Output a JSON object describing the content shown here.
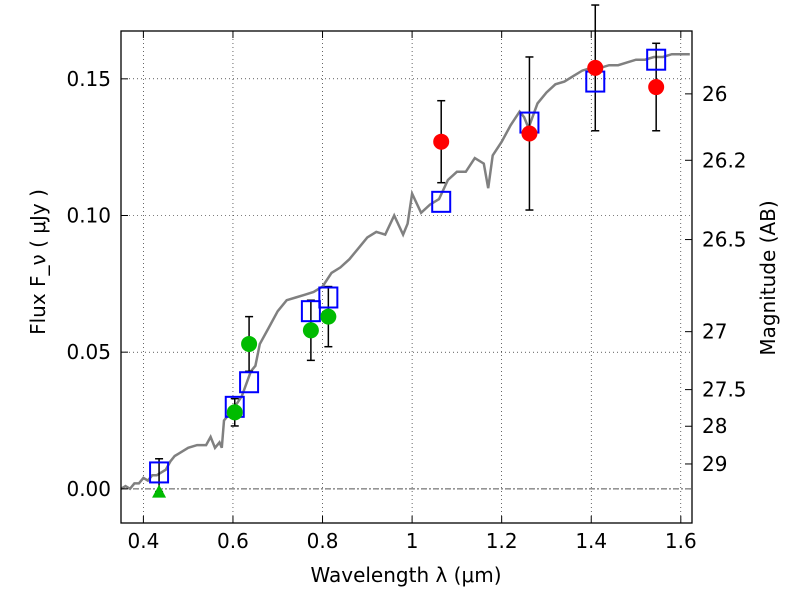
{
  "chart_data": {
    "type": "scatter",
    "xlabel": "Wavelength  λ (μm)",
    "ylabel": "Flux  F_ν  ( μJy )",
    "y2label": "Magnitude (AB)",
    "xlim": [
      0.35,
      1.625
    ],
    "ylim": [
      -0.0125,
      0.1675
    ],
    "grid": true,
    "x_ticks": [
      {
        "value": 0.4,
        "label": "0.4"
      },
      {
        "value": 0.6,
        "label": "0.6"
      },
      {
        "value": 0.8,
        "label": "0.8"
      },
      {
        "value": 1.0,
        "label": "1"
      },
      {
        "value": 1.2,
        "label": "1.2"
      },
      {
        "value": 1.4,
        "label": "1.4"
      },
      {
        "value": 1.6,
        "label": "1.6"
      }
    ],
    "y_ticks": [
      {
        "value": 0.0,
        "label": "0.00"
      },
      {
        "value": 0.05,
        "label": "0.05"
      },
      {
        "value": 0.1,
        "label": "0.10"
      },
      {
        "value": 0.15,
        "label": "0.15"
      }
    ],
    "mag_ticks": [
      {
        "label": "26",
        "flux": 0.1445
      },
      {
        "label": "26.2",
        "flux": 0.1202
      },
      {
        "label": "26.5",
        "flux": 0.0912
      },
      {
        "label": "27",
        "flux": 0.0575
      },
      {
        "label": "27.5",
        "flux": 0.0363
      },
      {
        "label": "28",
        "flux": 0.0229
      },
      {
        "label": "29",
        "flux": 0.0091
      }
    ],
    "colors": {
      "model": "#808080",
      "model_photometry": "#0000ff",
      "hst_points": "#00bb00",
      "ir_points": "#ff0000",
      "errorbar": "#000000",
      "zero_line": "#555555"
    },
    "model_spectrum": {
      "x": [
        0.35,
        0.36,
        0.37,
        0.38,
        0.39,
        0.4,
        0.41,
        0.42,
        0.43,
        0.44,
        0.45,
        0.46,
        0.47,
        0.48,
        0.5,
        0.52,
        0.54,
        0.55,
        0.56,
        0.57,
        0.575,
        0.58,
        0.59,
        0.6,
        0.62,
        0.64,
        0.65,
        0.66,
        0.68,
        0.7,
        0.72,
        0.74,
        0.76,
        0.78,
        0.8,
        0.82,
        0.84,
        0.86,
        0.88,
        0.9,
        0.92,
        0.94,
        0.96,
        0.98,
        0.99,
        1.0,
        1.02,
        1.04,
        1.06,
        1.08,
        1.1,
        1.12,
        1.14,
        1.16,
        1.17,
        1.18,
        1.2,
        1.22,
        1.24,
        1.25,
        1.26,
        1.28,
        1.3,
        1.32,
        1.34,
        1.36,
        1.38,
        1.4,
        1.42,
        1.44,
        1.46,
        1.48,
        1.5,
        1.52,
        1.54,
        1.56,
        1.58,
        1.6,
        1.62
      ],
      "y": [
        0.0,
        0.001,
        0.0,
        0.002,
        0.002,
        0.004,
        0.003,
        0.005,
        0.005,
        0.006,
        0.007,
        0.01,
        0.012,
        0.013,
        0.015,
        0.016,
        0.016,
        0.019,
        0.015,
        0.017,
        0.015,
        0.025,
        0.027,
        0.029,
        0.034,
        0.043,
        0.045,
        0.053,
        0.059,
        0.065,
        0.069,
        0.07,
        0.071,
        0.072,
        0.074,
        0.079,
        0.081,
        0.084,
        0.088,
        0.092,
        0.094,
        0.093,
        0.1,
        0.093,
        0.097,
        0.108,
        0.101,
        0.104,
        0.106,
        0.113,
        0.116,
        0.116,
        0.121,
        0.119,
        0.11,
        0.122,
        0.127,
        0.133,
        0.138,
        0.136,
        0.132,
        0.141,
        0.145,
        0.148,
        0.149,
        0.151,
        0.153,
        0.154,
        0.154,
        0.155,
        0.155,
        0.156,
        0.157,
        0.157,
        0.158,
        0.158,
        0.159,
        0.159,
        0.159
      ]
    },
    "model_photometry": {
      "x": [
        0.435,
        0.604,
        0.636,
        0.774,
        0.813,
        1.065,
        1.262,
        1.409,
        1.545
      ],
      "y": [
        0.006,
        0.03,
        0.039,
        0.065,
        0.07,
        0.105,
        0.134,
        0.149,
        0.157
      ]
    },
    "hst_points": {
      "x": [
        0.604,
        0.636,
        0.774,
        0.813
      ],
      "y": [
        0.028,
        0.053,
        0.058,
        0.063
      ],
      "err": [
        0.005,
        0.01,
        0.011,
        0.011
      ]
    },
    "ir_points": {
      "x": [
        1.065,
        1.262,
        1.409,
        1.545
      ],
      "y": [
        0.127,
        0.13,
        0.154,
        0.147
      ],
      "err": [
        0.015,
        0.028,
        0.023,
        0.016
      ]
    },
    "upper_limit": {
      "x": [
        0.435
      ],
      "y": [
        -0.001
      ],
      "err_up": [
        0.012
      ]
    }
  }
}
